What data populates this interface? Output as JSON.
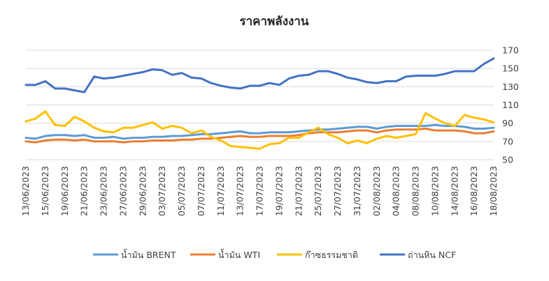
{
  "chart_data": {
    "type": "line",
    "title": "ราคาพลังงาน",
    "xlabel": "",
    "ylabel": "",
    "ylim": [
      50,
      170
    ],
    "yticks": [
      50,
      70,
      90,
      110,
      130,
      150,
      170
    ],
    "grid": "horizontal",
    "legend_position": "bottom",
    "x": [
      "13/06/2023",
      "14/06/2023",
      "15/06/2023",
      "16/06/2023",
      "19/06/2023",
      "20/06/2023",
      "21/06/2023",
      "22/06/2023",
      "23/06/2023",
      "26/06/2023",
      "27/06/2023",
      "28/06/2023",
      "29/06/2023",
      "30/06/2023",
      "03/07/2023",
      "04/07/2023",
      "05/07/2023",
      "06/07/2023",
      "07/07/2023",
      "10/07/2023",
      "11/07/2023",
      "12/07/2023",
      "13/07/2023",
      "14/07/2023",
      "17/07/2023",
      "18/07/2023",
      "19/07/2023",
      "20/07/2023",
      "21/07/2023",
      "24/07/2023",
      "25/07/2023",
      "26/07/2023",
      "27/07/2023",
      "28/07/2023",
      "31/07/2023",
      "01/08/2023",
      "02/08/2023",
      "03/08/2023",
      "04/08/2023",
      "07/08/2023",
      "08/08/2023",
      "09/08/2023",
      "10/08/2023",
      "11/08/2023",
      "14/08/2023",
      "15/08/2023",
      "16/08/2023",
      "17/08/2023",
      "18/08/2023"
    ],
    "xticks": [
      "13/06/2023",
      "15/06/2023",
      "19/06/2023",
      "21/06/2023",
      "23/06/2023",
      "27/06/2023",
      "29/06/2023",
      "03/07/2023",
      "05/07/2023",
      "07/07/2023",
      "11/07/2023",
      "13/07/2023",
      "17/07/2023",
      "19/07/2023",
      "21/07/2023",
      "25/07/2023",
      "27/07/2023",
      "31/07/2023",
      "02/08/2023",
      "04/08/2023",
      "08/08/2023",
      "10/08/2023",
      "14/08/2023",
      "16/08/2023",
      "18/08/2023"
    ],
    "series": [
      {
        "name": "น้ำมัน BRENT",
        "color": "#5b9bd5",
        "width": 3,
        "values": [
          74,
          73,
          76,
          77,
          77,
          76,
          77,
          74,
          74,
          75,
          73,
          74,
          74,
          75,
          75,
          76,
          76,
          77,
          78,
          78,
          79,
          80,
          81,
          79,
          79,
          80,
          80,
          80,
          81,
          82,
          83,
          83,
          84,
          85,
          86,
          86,
          84,
          86,
          87,
          87,
          87,
          87,
          88,
          87,
          87,
          86,
          84,
          84,
          85
        ]
      },
      {
        "name": "น้ำมัน WTI",
        "color": "#ed7d31",
        "width": 3,
        "values": [
          70,
          69,
          71,
          72,
          72,
          71,
          72,
          70,
          70,
          70,
          69,
          70,
          70,
          71,
          71,
          71,
          72,
          72,
          73,
          73,
          74,
          75,
          76,
          75,
          75,
          76,
          76,
          76,
          77,
          79,
          80,
          80,
          80,
          81,
          82,
          82,
          80,
          82,
          83,
          83,
          83,
          84,
          82,
          82,
          82,
          81,
          79,
          79,
          81
        ]
      },
      {
        "name": "ก๊าซธรรมชาติ",
        "color": "#ffc000",
        "width": 3,
        "values": [
          92,
          95,
          103,
          88,
          87,
          97,
          92,
          85,
          81,
          80,
          85,
          85,
          88,
          91,
          84,
          87,
          85,
          79,
          82,
          75,
          71,
          65,
          64,
          63,
          62,
          67,
          68,
          74,
          74,
          80,
          85,
          78,
          74,
          68,
          71,
          68,
          73,
          76,
          74,
          76,
          78,
          101,
          95,
          90,
          87,
          99,
          96,
          94,
          91
        ]
      },
      {
        "name": "ถ่านหิน NCF",
        "color": "#4472c4",
        "width": 3,
        "values": [
          132,
          132,
          136,
          128,
          128,
          126,
          124,
          141,
          139,
          140,
          142,
          144,
          146,
          149,
          148,
          143,
          145,
          140,
          139,
          134,
          131,
          129,
          128,
          131,
          131,
          134,
          132,
          139,
          142,
          143,
          147,
          147,
          144,
          140,
          138,
          135,
          134,
          136,
          136,
          141,
          142,
          142,
          142,
          144,
          147,
          147,
          147,
          155,
          161
        ]
      }
    ]
  }
}
